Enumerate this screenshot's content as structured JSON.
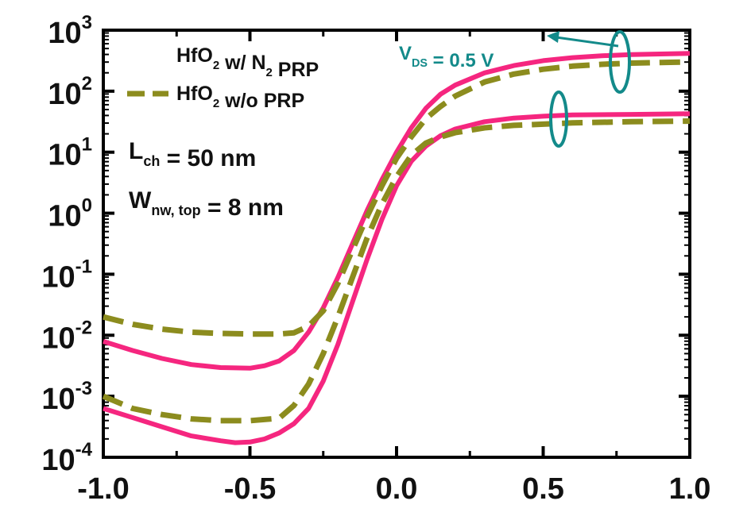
{
  "chart_data": {
    "type": "line",
    "title": "",
    "xlabel": "",
    "ylabel": "",
    "xlim": [
      -1.0,
      1.0
    ],
    "ylim_log10": [
      -4,
      3
    ],
    "y_scale": "log",
    "x_ticks": [
      -1.0,
      -0.5,
      0.0,
      0.5,
      1.0
    ],
    "x_tick_labels": [
      "-1.0",
      "-0.5",
      "0.0",
      "0.5",
      "1.0"
    ],
    "y_ticks_log10": [
      3,
      2,
      1,
      0,
      -1,
      -2,
      -3,
      -4
    ],
    "y_tick_labels": [
      {
        "base": "10",
        "exp": "3"
      },
      {
        "base": "10",
        "exp": "2"
      },
      {
        "base": "10",
        "exp": "1"
      },
      {
        "base": "10",
        "exp": "0"
      },
      {
        "base": "10",
        "exp": "-1"
      },
      {
        "base": "10",
        "exp": "-2"
      },
      {
        "base": "10",
        "exp": "-3"
      },
      {
        "base": "10",
        "exp": "-4"
      }
    ],
    "legend": {
      "placement": "top-left",
      "entries": [
        {
          "parts": [
            {
              "t": "HfO",
              "s": ""
            },
            {
              "t": "2",
              "s": "sub"
            },
            {
              "t": " w/ N",
              "s": ""
            },
            {
              "t": "2",
              "s": "sub"
            },
            {
              "t": " PRP",
              "s": ""
            }
          ],
          "style": "solid",
          "color": "#f5267f"
        },
        {
          "parts": [
            {
              "t": "HfO",
              "s": ""
            },
            {
              "t": "2",
              "s": "sub"
            },
            {
              "t": " w/o PRP",
              "s": ""
            }
          ],
          "style": "dashed",
          "color": "#8c8c1e"
        }
      ]
    },
    "annotations": [
      {
        "parts": [
          {
            "t": "L",
            "s": ""
          },
          {
            "t": "ch",
            "s": "sub"
          },
          {
            "t": "  = 50 nm",
            "s": ""
          }
        ]
      },
      {
        "parts": [
          {
            "t": "W",
            "s": ""
          },
          {
            "t": "nw, top",
            "s": "sub"
          },
          {
            "t": " = 8 nm",
            "s": ""
          }
        ]
      },
      {
        "parts": [
          {
            "t": "V",
            "s": ""
          },
          {
            "t": "DS",
            "s": "sub"
          },
          {
            "t": " = 0.5 V",
            "s": ""
          }
        ],
        "color": "#138a8a"
      }
    ],
    "series": [
      {
        "style": "solid",
        "color": "#f5267f",
        "x": [
          -1.0,
          -0.9,
          -0.8,
          -0.7,
          -0.6,
          -0.5,
          -0.45,
          -0.4,
          -0.35,
          -0.3,
          -0.25,
          -0.2,
          -0.15,
          -0.1,
          -0.05,
          0.0,
          0.05,
          0.1,
          0.15,
          0.2,
          0.3,
          0.4,
          0.5,
          0.6,
          0.7,
          0.8,
          0.9,
          1.0
        ],
        "y_log10": [
          -2.1,
          -2.25,
          -2.38,
          -2.48,
          -2.53,
          -2.54,
          -2.5,
          -2.42,
          -2.25,
          -1.95,
          -1.55,
          -1.05,
          -0.5,
          0.05,
          0.55,
          1.0,
          1.4,
          1.72,
          1.95,
          2.1,
          2.3,
          2.42,
          2.5,
          2.55,
          2.58,
          2.6,
          2.61,
          2.62
        ]
      },
      {
        "style": "solid",
        "color": "#f5267f",
        "x": [
          -1.0,
          -0.9,
          -0.8,
          -0.7,
          -0.6,
          -0.55,
          -0.5,
          -0.45,
          -0.4,
          -0.35,
          -0.3,
          -0.25,
          -0.2,
          -0.15,
          -0.1,
          -0.05,
          0.0,
          0.05,
          0.1,
          0.15,
          0.2,
          0.3,
          0.4,
          0.5,
          0.6,
          0.8,
          1.0
        ],
        "y_log10": [
          -3.2,
          -3.35,
          -3.5,
          -3.65,
          -3.73,
          -3.76,
          -3.75,
          -3.7,
          -3.6,
          -3.45,
          -3.2,
          -2.75,
          -2.15,
          -1.45,
          -0.75,
          -0.1,
          0.45,
          0.85,
          1.1,
          1.27,
          1.38,
          1.5,
          1.56,
          1.59,
          1.61,
          1.62,
          1.63
        ]
      },
      {
        "style": "dashed",
        "color": "#8c8c1e",
        "x": [
          -1.0,
          -0.9,
          -0.8,
          -0.7,
          -0.6,
          -0.5,
          -0.4,
          -0.35,
          -0.3,
          -0.25,
          -0.2,
          -0.15,
          -0.1,
          -0.05,
          0.0,
          0.05,
          0.1,
          0.15,
          0.2,
          0.3,
          0.4,
          0.5,
          0.6,
          0.7,
          0.8,
          0.9,
          1.0
        ],
        "y_log10": [
          -1.7,
          -1.82,
          -1.9,
          -1.95,
          -1.97,
          -1.98,
          -1.98,
          -1.96,
          -1.85,
          -1.6,
          -1.15,
          -0.6,
          -0.05,
          0.45,
          0.9,
          1.25,
          1.55,
          1.75,
          1.92,
          2.15,
          2.28,
          2.36,
          2.41,
          2.44,
          2.46,
          2.47,
          2.48
        ]
      },
      {
        "style": "dashed",
        "color": "#8c8c1e",
        "x": [
          -1.0,
          -0.9,
          -0.8,
          -0.7,
          -0.6,
          -0.5,
          -0.4,
          -0.35,
          -0.3,
          -0.25,
          -0.2,
          -0.15,
          -0.1,
          -0.05,
          0.0,
          0.05,
          0.1,
          0.15,
          0.2,
          0.3,
          0.4,
          0.5,
          0.6,
          0.8,
          1.0
        ],
        "y_log10": [
          -3.0,
          -3.2,
          -3.3,
          -3.37,
          -3.4,
          -3.4,
          -3.36,
          -3.15,
          -2.8,
          -2.3,
          -1.7,
          -1.05,
          -0.4,
          0.15,
          0.6,
          0.95,
          1.15,
          1.25,
          1.32,
          1.4,
          1.44,
          1.46,
          1.48,
          1.5,
          1.51
        ]
      }
    ]
  }
}
